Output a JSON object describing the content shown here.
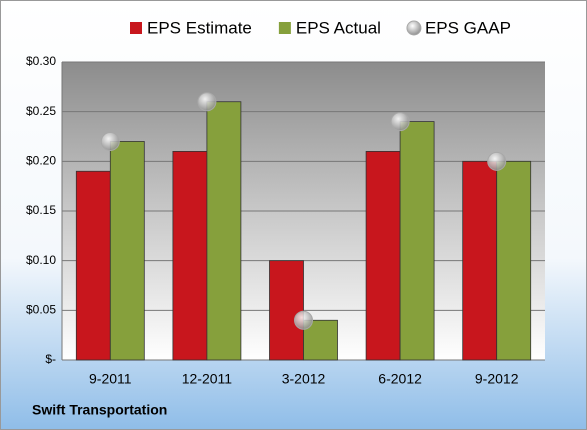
{
  "chart_data": {
    "type": "bar",
    "footer": "Swift Transportation",
    "categories": [
      "9-2011",
      "12-2011",
      "3-2012",
      "6-2012",
      "9-2012"
    ],
    "series": [
      {
        "name": "EPS Estimate",
        "color": "#c8161d",
        "marker": "bar",
        "values": [
          0.19,
          0.21,
          0.1,
          0.21,
          0.2
        ]
      },
      {
        "name": "EPS Actual",
        "color": "#86a03c",
        "marker": "bar",
        "values": [
          0.22,
          0.26,
          0.04,
          0.24,
          0.2
        ]
      },
      {
        "name": "EPS GAAP",
        "color": "#a8a8a8",
        "marker": "dot",
        "values": [
          0.22,
          0.26,
          0.04,
          0.24,
          0.2
        ]
      }
    ],
    "ylim": [
      0,
      0.3
    ],
    "yticks": [
      {
        "value": 0,
        "label": "$-"
      },
      {
        "value": 0.05,
        "label": "$0.05"
      },
      {
        "value": 0.1,
        "label": "$0.10"
      },
      {
        "value": 0.15,
        "label": "$0.15"
      },
      {
        "value": 0.2,
        "label": "$0.20"
      },
      {
        "value": 0.25,
        "label": "$0.25"
      },
      {
        "value": 0.3,
        "label": "$0.30"
      }
    ],
    "grid": true,
    "legend": "top"
  }
}
